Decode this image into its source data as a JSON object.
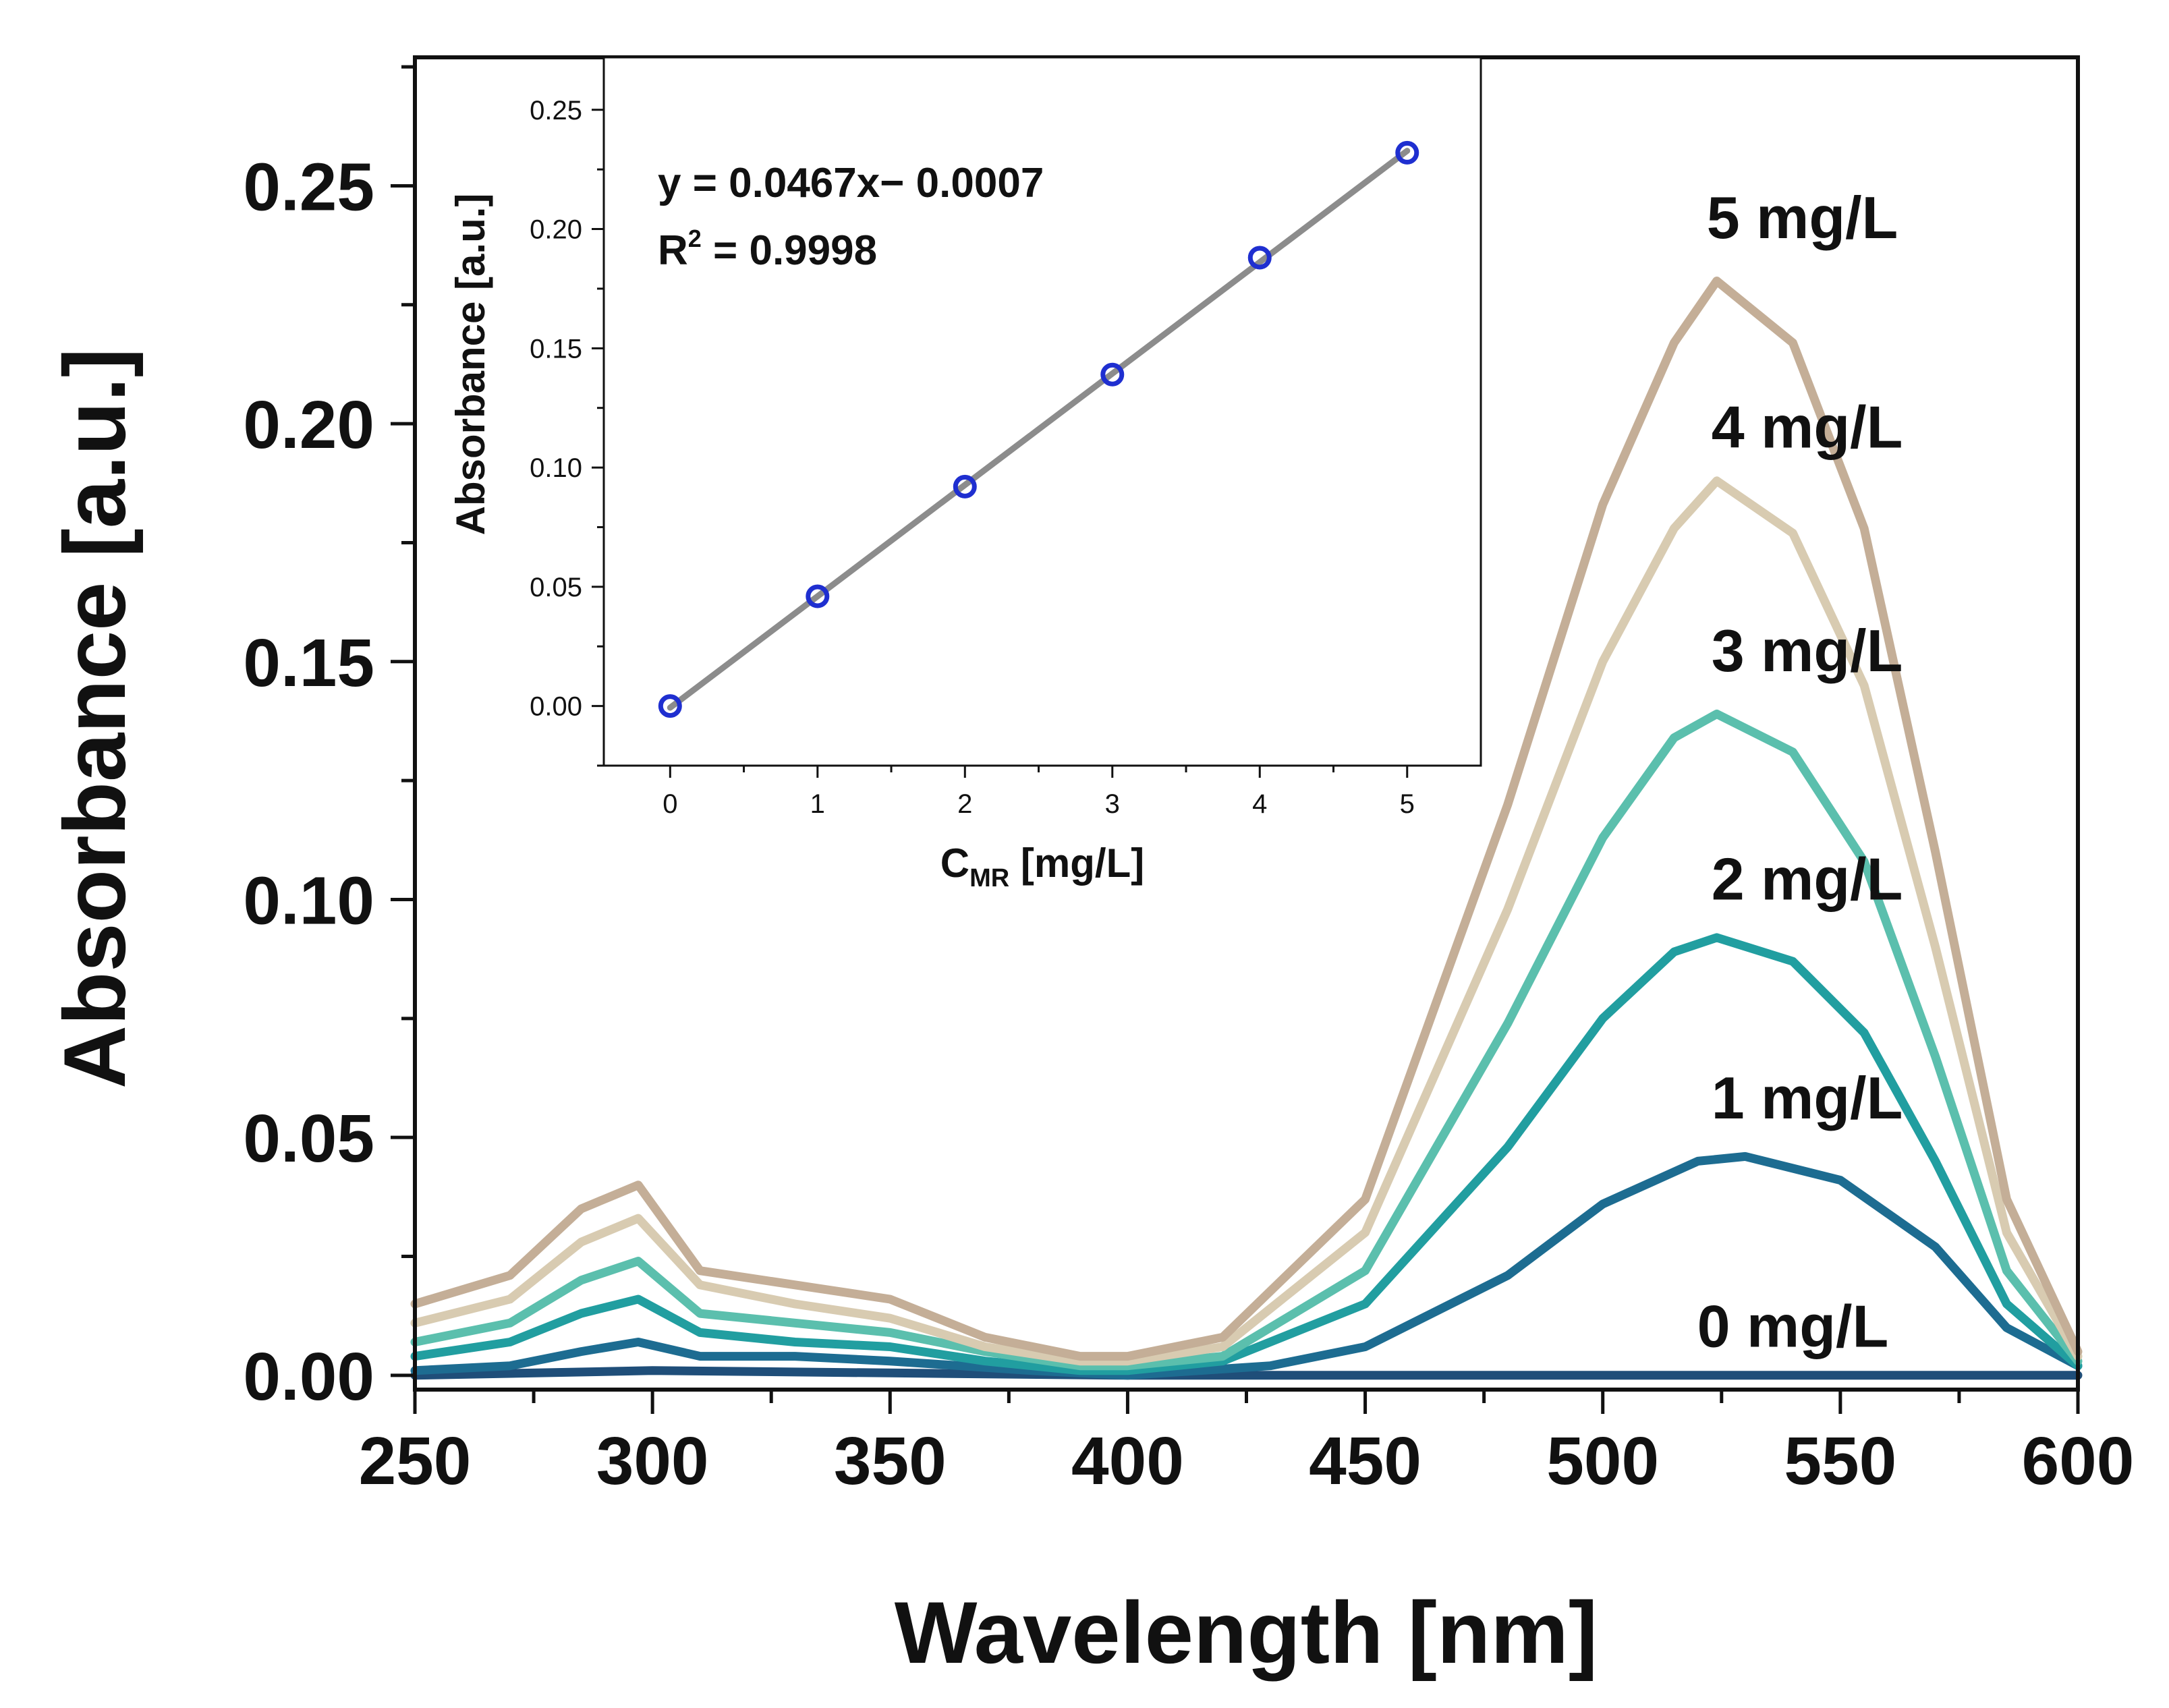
{
  "chart_data": [
    {
      "type": "line",
      "xlabel": "Wavelength [nm]",
      "ylabel": "Absorbance [a.u.]",
      "xlim": [
        250,
        600
      ],
      "ylim": [
        -0.003,
        0.277
      ],
      "xticks": [
        250,
        300,
        350,
        400,
        450,
        500,
        550,
        600
      ],
      "xtick_labels": [
        "250",
        "300",
        "350",
        "400",
        "450",
        "500",
        "550",
        "600"
      ],
      "yticks": [
        0.0,
        0.05,
        0.1,
        0.15,
        0.2,
        0.25
      ],
      "ytick_labels": [
        "0.00",
        "0.05",
        "0.10",
        "0.15",
        "0.20",
        "0.25"
      ],
      "grid": false,
      "series": [
        {
          "name": "0 mg/L",
          "label": "0 mg/L",
          "color": "#1f4e79",
          "points": [
            [
              250,
              0.0
            ],
            [
              300,
              0.001
            ],
            [
              350,
              0.0005
            ],
            [
              400,
              0.0
            ],
            [
              450,
              0.0
            ],
            [
              500,
              0.0
            ],
            [
              550,
              0.0
            ],
            [
              600,
              0.0
            ]
          ],
          "label_at": [
            540,
            0.006
          ]
        },
        {
          "name": "1 mg/L",
          "label": "1 mg/L",
          "color": "#1d6c91",
          "points": [
            [
              250,
              0.001
            ],
            [
              270,
              0.002
            ],
            [
              285,
              0.005
            ],
            [
              297,
              0.007
            ],
            [
              310,
              0.004
            ],
            [
              330,
              0.004
            ],
            [
              350,
              0.003
            ],
            [
              380,
              0.001
            ],
            [
              400,
              0.0
            ],
            [
              430,
              0.002
            ],
            [
              450,
              0.006
            ],
            [
              480,
              0.021
            ],
            [
              500,
              0.036
            ],
            [
              520,
              0.045
            ],
            [
              530,
              0.046
            ],
            [
              550,
              0.041
            ],
            [
              570,
              0.027
            ],
            [
              585,
              0.01
            ],
            [
              600,
              0.002
            ]
          ],
          "label_at": [
            543,
            0.054
          ]
        },
        {
          "name": "2 mg/L",
          "label": "2 mg/L",
          "color": "#219ea0",
          "points": [
            [
              250,
              0.004
            ],
            [
              270,
              0.007
            ],
            [
              285,
              0.013
            ],
            [
              297,
              0.016
            ],
            [
              310,
              0.009
            ],
            [
              330,
              0.007
            ],
            [
              350,
              0.006
            ],
            [
              370,
              0.003
            ],
            [
              390,
              0.001
            ],
            [
              400,
              0.001
            ],
            [
              420,
              0.003
            ],
            [
              450,
              0.015
            ],
            [
              480,
              0.048
            ],
            [
              500,
              0.075
            ],
            [
              515,
              0.089
            ],
            [
              524,
              0.092
            ],
            [
              540,
              0.087
            ],
            [
              555,
              0.072
            ],
            [
              570,
              0.045
            ],
            [
              585,
              0.015
            ],
            [
              600,
              0.002
            ]
          ],
          "label_at": [
            543,
            0.1
          ]
        },
        {
          "name": "3 mg/L",
          "label": "3 mg/L",
          "color": "#5bbfad",
          "points": [
            [
              250,
              0.007
            ],
            [
              270,
              0.011
            ],
            [
              285,
              0.02
            ],
            [
              297,
              0.024
            ],
            [
              310,
              0.013
            ],
            [
              330,
              0.011
            ],
            [
              350,
              0.009
            ],
            [
              370,
              0.005
            ],
            [
              390,
              0.002
            ],
            [
              400,
              0.002
            ],
            [
              420,
              0.004
            ],
            [
              450,
              0.022
            ],
            [
              480,
              0.074
            ],
            [
              500,
              0.113
            ],
            [
              515,
              0.134
            ],
            [
              524,
              0.139
            ],
            [
              540,
              0.131
            ],
            [
              555,
              0.108
            ],
            [
              570,
              0.067
            ],
            [
              585,
              0.022
            ],
            [
              600,
              0.003
            ]
          ],
          "label_at": [
            543,
            0.148
          ]
        },
        {
          "name": "4 mg/L",
          "label": "4 mg/L",
          "color": "#d8cbb1",
          "points": [
            [
              250,
              0.011
            ],
            [
              270,
              0.016
            ],
            [
              285,
              0.028
            ],
            [
              297,
              0.033
            ],
            [
              310,
              0.019
            ],
            [
              330,
              0.015
            ],
            [
              350,
              0.012
            ],
            [
              370,
              0.006
            ],
            [
              390,
              0.003
            ],
            [
              400,
              0.003
            ],
            [
              420,
              0.006
            ],
            [
              450,
              0.03
            ],
            [
              480,
              0.098
            ],
            [
              500,
              0.15
            ],
            [
              515,
              0.178
            ],
            [
              524,
              0.188
            ],
            [
              540,
              0.177
            ],
            [
              555,
              0.145
            ],
            [
              570,
              0.09
            ],
            [
              585,
              0.03
            ],
            [
              600,
              0.004
            ]
          ],
          "label_at": [
            543,
            0.195
          ]
        },
        {
          "name": "5 mg/L",
          "label": "5 mg/L",
          "color": "#c4ae97",
          "points": [
            [
              250,
              0.015
            ],
            [
              270,
              0.021
            ],
            [
              285,
              0.035
            ],
            [
              297,
              0.04
            ],
            [
              310,
              0.022
            ],
            [
              330,
              0.019
            ],
            [
              350,
              0.016
            ],
            [
              370,
              0.008
            ],
            [
              390,
              0.004
            ],
            [
              400,
              0.004
            ],
            [
              420,
              0.008
            ],
            [
              450,
              0.037
            ],
            [
              480,
              0.12
            ],
            [
              500,
              0.183
            ],
            [
              515,
              0.217
            ],
            [
              524,
              0.23
            ],
            [
              540,
              0.217
            ],
            [
              555,
              0.178
            ],
            [
              570,
              0.11
            ],
            [
              585,
              0.037
            ],
            [
              600,
              0.005
            ]
          ],
          "label_at": [
            542,
            0.239
          ]
        }
      ]
    },
    {
      "type": "scatter",
      "xlabel_main": "C",
      "xlabel_sub": "MR",
      "xlabel_rest": " [mg/L]",
      "ylabel": "Absorbance [a.u.]",
      "xlim": [
        -0.45,
        5.5
      ],
      "ylim": [
        -0.025,
        0.272
      ],
      "xticks": [
        0,
        1,
        2,
        3,
        4,
        5
      ],
      "xtick_labels": [
        "0",
        "1",
        "2",
        "3",
        "4",
        "5"
      ],
      "yticks": [
        0.0,
        0.05,
        0.1,
        0.15,
        0.2,
        0.25
      ],
      "ytick_labels": [
        "0.00",
        "0.05",
        "0.10",
        "0.15",
        "0.20",
        "0.25"
      ],
      "x": [
        0,
        1,
        2,
        3,
        4,
        5
      ],
      "values": [
        0.0,
        0.046,
        0.092,
        0.139,
        0.188,
        0.232
      ],
      "marker_color": "#1f2fd0",
      "fit_color": "#8c8c8c",
      "fit": {
        "slope": 0.0467,
        "intercept": -0.0007
      },
      "equation": "y = 0.0467x− 0.0007",
      "r2_prefix": "R",
      "r2_sup": "2",
      "r2_rest": " = 0.9998",
      "grid": false
    }
  ]
}
